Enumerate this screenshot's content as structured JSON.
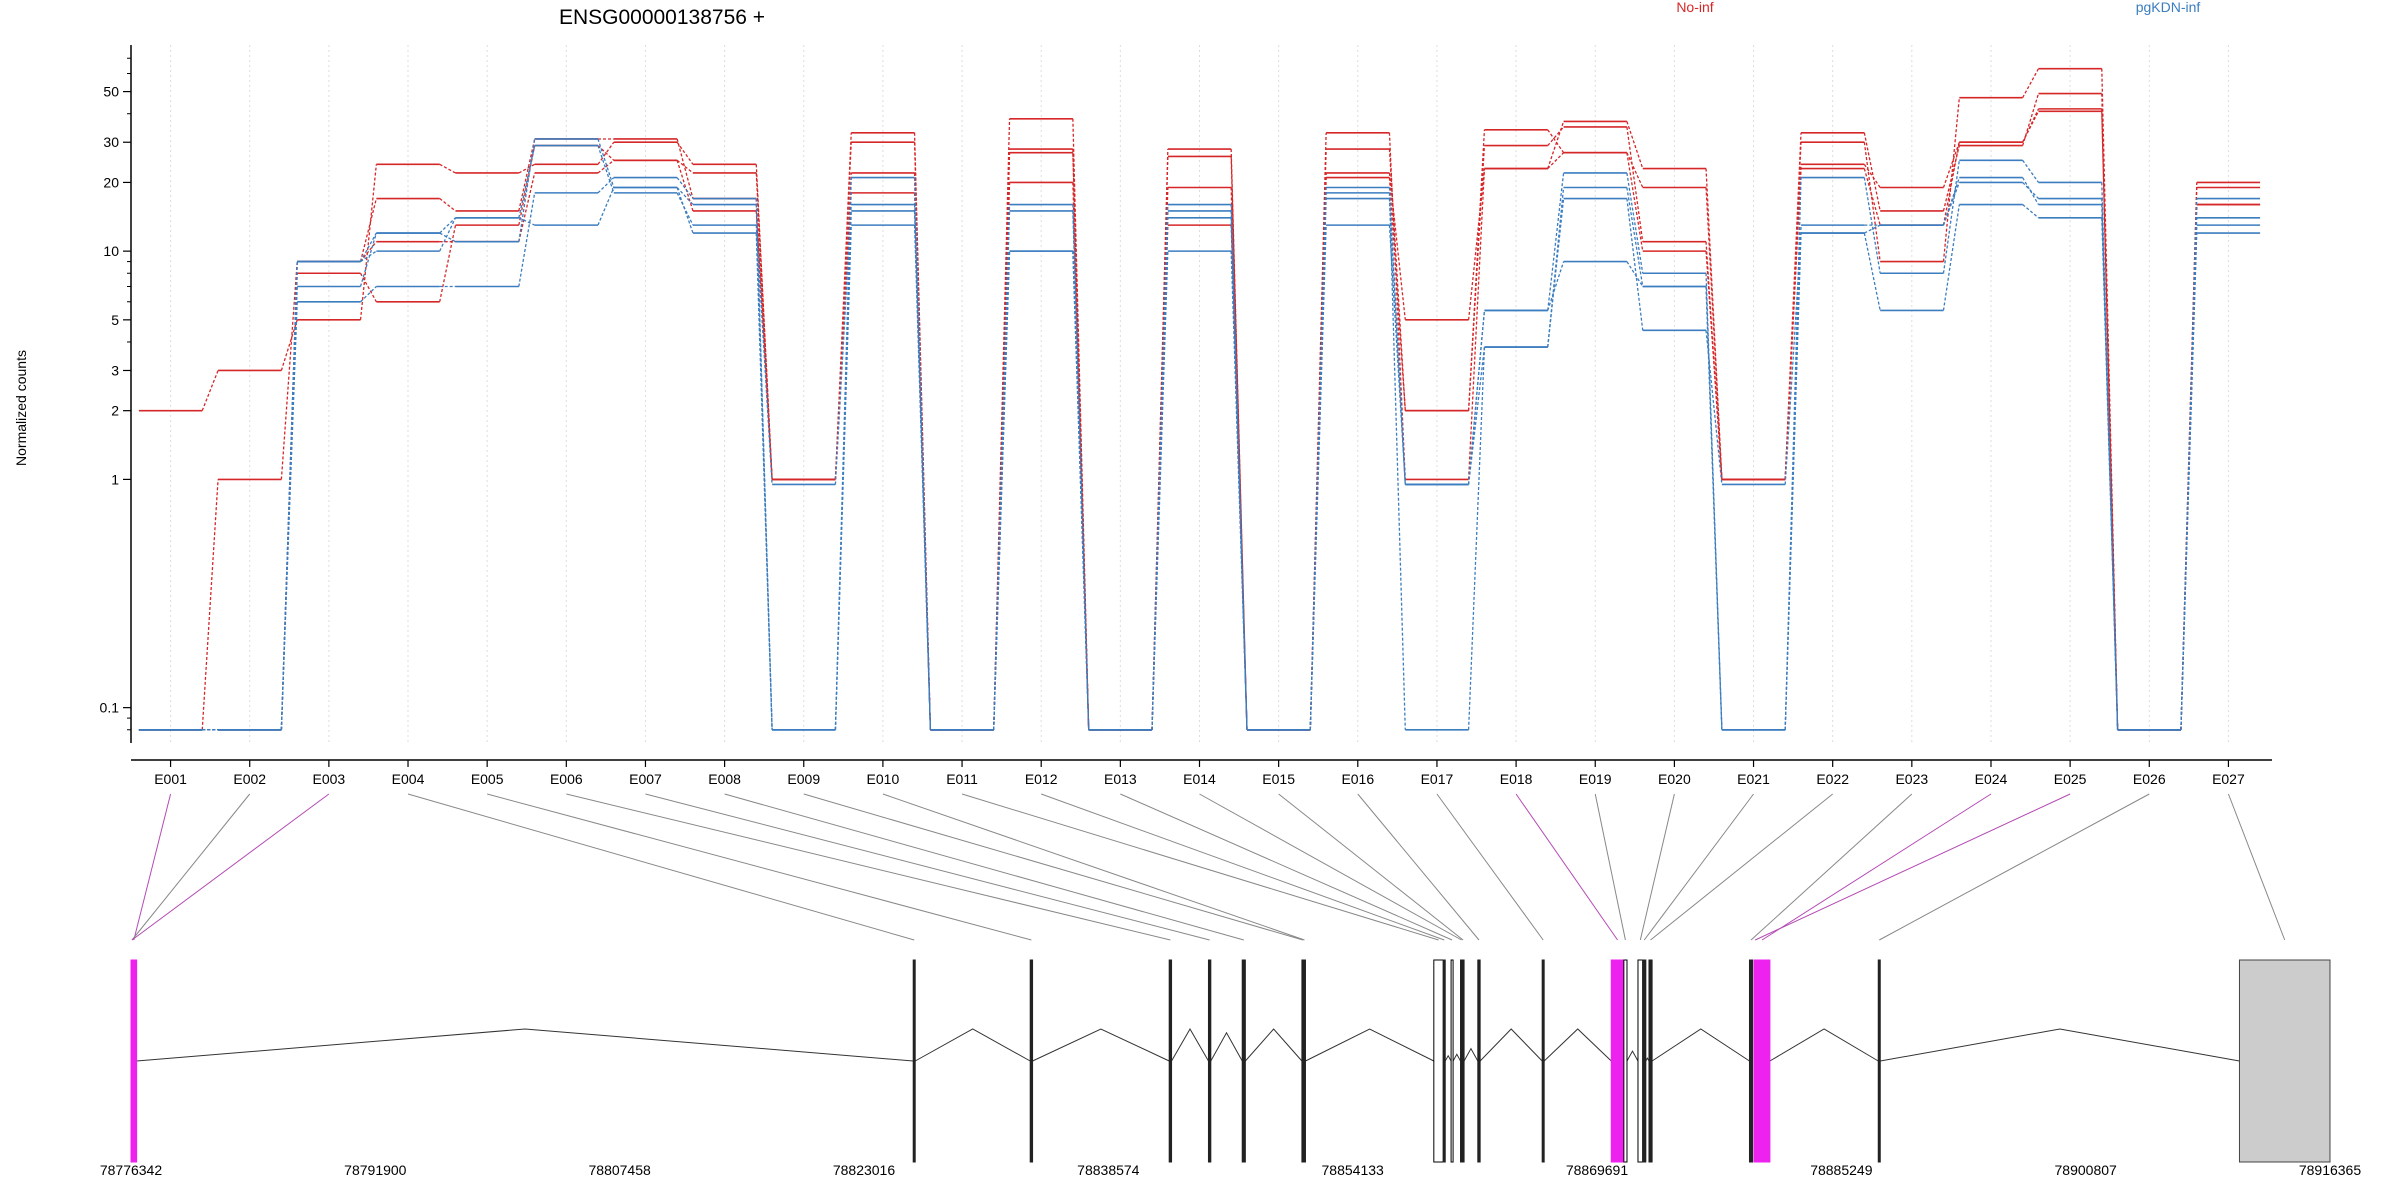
{
  "chart_data": {
    "type": "line",
    "title": "ENSG00000138756 +",
    "ylabel": "Normalized counts",
    "yscale": "log",
    "ylim": [
      0.07,
      80
    ],
    "yticks": [
      {
        "value": 0.1,
        "label": "0.1"
      },
      {
        "value": 1,
        "label": "1"
      },
      {
        "value": 2,
        "label": "2"
      },
      {
        "value": 3,
        "label": "3"
      },
      {
        "value": 5,
        "label": "5"
      },
      {
        "value": 10,
        "label": "10"
      },
      {
        "value": 20,
        "label": "20"
      },
      {
        "value": 30,
        "label": "30"
      },
      {
        "value": 50,
        "label": "50"
      }
    ],
    "grid": "vertical dotted at each exon",
    "legend_placement": "top",
    "categories": [
      "E001",
      "E002",
      "E003",
      "E004",
      "E005",
      "E006",
      "E007",
      "E008",
      "E009",
      "E010",
      "E011",
      "E012",
      "E013",
      "E014",
      "E015",
      "E016",
      "E017",
      "E018",
      "E019",
      "E020",
      "E021",
      "E022",
      "E023",
      "E024",
      "E025",
      "E026",
      "E027"
    ],
    "groups": [
      {
        "name": "No-inf",
        "color": "#d62728"
      },
      {
        "name": "pgKDN-inf",
        "color": "#3b7dbf"
      }
    ],
    "series": [
      {
        "group": "No-inf",
        "values": [
          2,
          3,
          5,
          24,
          22,
          24,
          30,
          24,
          1,
          30,
          0.08,
          38,
          0.08,
          28,
          0.08,
          33,
          1,
          23,
          27,
          19,
          1,
          30,
          9,
          47,
          63,
          0.08,
          20
        ]
      },
      {
        "group": "No-inf",
        "values": [
          0.08,
          1,
          9,
          17,
          15,
          31,
          31,
          17,
          1,
          33,
          0.08,
          28,
          0.08,
          19,
          0.08,
          28,
          2,
          29,
          35,
          11,
          1,
          33,
          15,
          29,
          49,
          0.08,
          19
        ]
      },
      {
        "group": "No-inf",
        "values": [
          0.08,
          0.08,
          8,
          6,
          13,
          29,
          25,
          15,
          1,
          22,
          0.08,
          27,
          0.08,
          26,
          0.08,
          21,
          2,
          34,
          27,
          10,
          1,
          23,
          13,
          30,
          41,
          0.08,
          16
        ]
      },
      {
        "group": "No-inf",
        "values": [
          0.08,
          0.08,
          9,
          11,
          11,
          22,
          25,
          22,
          1,
          18,
          0.08,
          20,
          0.08,
          13,
          0.08,
          22,
          5,
          23,
          37,
          23,
          1,
          24,
          19,
          30,
          42,
          0.08,
          16
        ]
      },
      {
        "group": "pgKDN-inf",
        "values": [
          0.08,
          0.08,
          9,
          12,
          11,
          31,
          19,
          16,
          0.08,
          21,
          0.08,
          10,
          0.08,
          15,
          0.08,
          19,
          0.95,
          5.5,
          22,
          8,
          0.08,
          21,
          8,
          25,
          20,
          0.08,
          13
        ]
      },
      {
        "group": "pgKDN-inf",
        "values": [
          0.08,
          0.08,
          7,
          12,
          14,
          29,
          18,
          13,
          0.95,
          16,
          0.08,
          16,
          0.08,
          16,
          0.08,
          18,
          0.08,
          3.8,
          17,
          4.5,
          0.95,
          12,
          13,
          21,
          16,
          0.08,
          17
        ]
      },
      {
        "group": "pgKDN-inf",
        "values": [
          0.08,
          0.08,
          6,
          7,
          7,
          18,
          21,
          17,
          0.08,
          15,
          0.08,
          15,
          0.08,
          14,
          0.08,
          13,
          0.95,
          5.5,
          9,
          7,
          0.08,
          12,
          5.5,
          16,
          14,
          0.08,
          12
        ]
      },
      {
        "group": "pgKDN-inf",
        "values": [
          0.08,
          0.08,
          9,
          10,
          14,
          13,
          19,
          12,
          0.08,
          13,
          0.08,
          10,
          0.08,
          10,
          0.08,
          17,
          0.95,
          3.8,
          19,
          7,
          0.08,
          13,
          13,
          20,
          17,
          0.08,
          14
        ]
      }
    ],
    "gene_model": {
      "genomic_start": 78776342,
      "genomic_end": 78916365,
      "axis_labels": [
        {
          "value": 78776342,
          "label": "78776342"
        },
        {
          "value": 78791900,
          "label": "78791900"
        },
        {
          "value": 78807458,
          "label": "78807458"
        },
        {
          "value": 78823016,
          "label": "78823016"
        },
        {
          "value": 78838574,
          "label": "78838574"
        },
        {
          "value": 78854133,
          "label": "78854133"
        },
        {
          "value": 78869691,
          "label": "78869691"
        },
        {
          "value": 78885249,
          "label": "78885249"
        },
        {
          "value": 78900807,
          "label": "78900807"
        },
        {
          "value": 78916365,
          "label": "78916365"
        }
      ],
      "highlight_color": "#ee22ee",
      "utr_color": "#cccccc",
      "exons": [
        {
          "id": "E001",
          "start": 78776342,
          "end": 78776700,
          "type": "highlight"
        },
        {
          "id": "E002",
          "start": 78776342,
          "end": 78776342,
          "type": "normal"
        },
        {
          "id": "E003",
          "start": 78776342,
          "end": 78776342,
          "type": "highlight"
        },
        {
          "id": "E004",
          "start": 78826150,
          "end": 78826250,
          "type": "normal"
        },
        {
          "id": "E005",
          "start": 78833600,
          "end": 78833750,
          "type": "normal"
        },
        {
          "id": "E006",
          "start": 78842450,
          "end": 78842600,
          "type": "normal"
        },
        {
          "id": "E007",
          "start": 78844950,
          "end": 78845100,
          "type": "normal"
        },
        {
          "id": "E008",
          "start": 78847100,
          "end": 78847300,
          "type": "normal"
        },
        {
          "id": "E009",
          "start": 78850900,
          "end": 78851000,
          "type": "normal"
        },
        {
          "id": "E010",
          "start": 78851000,
          "end": 78851100,
          "type": "normal"
        },
        {
          "id": "E011",
          "start": 78859300,
          "end": 78859900,
          "type": "open"
        },
        {
          "id": "E012",
          "start": 78859900,
          "end": 78860000,
          "type": "normal"
        },
        {
          "id": "E013",
          "start": 78860400,
          "end": 78860500,
          "type": "open"
        },
        {
          "id": "E014",
          "start": 78861000,
          "end": 78861100,
          "type": "normal"
        },
        {
          "id": "E015",
          "start": 78861100,
          "end": 78861200,
          "type": "normal"
        },
        {
          "id": "E016",
          "start": 78862100,
          "end": 78862250,
          "type": "normal"
        },
        {
          "id": "E017",
          "start": 78866200,
          "end": 78866300,
          "type": "normal"
        },
        {
          "id": "E018",
          "start": 78870600,
          "end": 78871400,
          "type": "highlight"
        },
        {
          "id": "E019",
          "start": 78871400,
          "end": 78871600,
          "type": "open"
        },
        {
          "id": "E020",
          "start": 78872300,
          "end": 78872600,
          "type": "open"
        },
        {
          "id": "E021",
          "start": 78872600,
          "end": 78872800,
          "type": "normal"
        },
        {
          "id": "E022",
          "start": 78873000,
          "end": 78873200,
          "type": "normal"
        },
        {
          "id": "E023",
          "start": 78879400,
          "end": 78879600,
          "type": "normal"
        },
        {
          "id": "E024",
          "start": 78879700,
          "end": 78880700,
          "type": "highlight"
        },
        {
          "id": "E025",
          "start": 78879700,
          "end": 78879700,
          "type": "highlight"
        },
        {
          "id": "E026",
          "start": 78887600,
          "end": 78887700,
          "type": "normal"
        },
        {
          "id": "E027",
          "start": 78910600,
          "end": 78916365,
          "type": "utr"
        }
      ]
    }
  }
}
